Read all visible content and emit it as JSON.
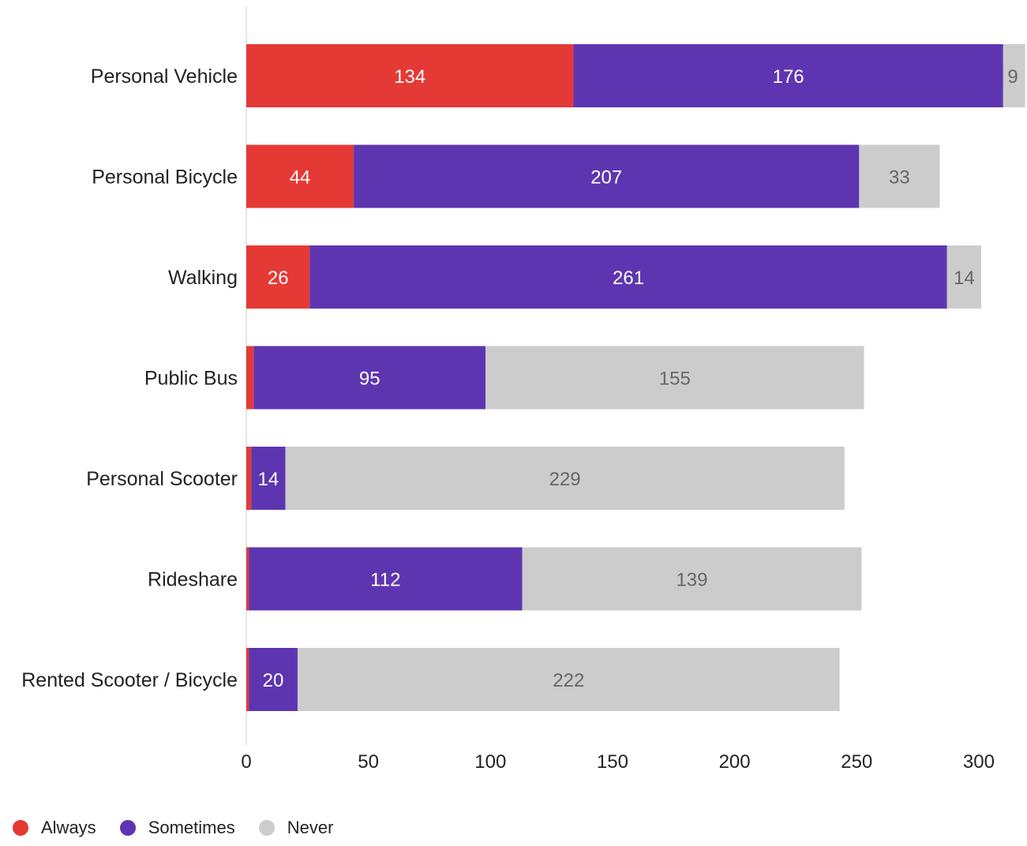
{
  "chart_data": {
    "type": "bar",
    "orientation": "horizontal",
    "stacked": true,
    "categories": [
      "Personal Vehicle",
      "Personal Bicycle",
      "Walking",
      "Public Bus",
      "Personal Scooter",
      "Rideshare",
      "Rented Scooter / Bicycle"
    ],
    "series": [
      {
        "name": "Always",
        "color": "#e53935",
        "values": [
          134,
          44,
          26,
          3,
          2,
          1,
          1
        ],
        "labels": [
          "134",
          "44",
          "26",
          "",
          "",
          "",
          ""
        ]
      },
      {
        "name": "Sometimes",
        "color": "#5e35b1",
        "values": [
          176,
          207,
          261,
          95,
          14,
          112,
          20
        ],
        "labels": [
          "176",
          "207",
          "261",
          "95",
          "14",
          "112",
          "20"
        ]
      },
      {
        "name": "Never",
        "color": "#cccccc",
        "values": [
          9,
          33,
          14,
          155,
          229,
          139,
          222
        ],
        "labels": [
          "9",
          "33",
          "14",
          "155",
          "229",
          "139",
          "222"
        ]
      }
    ],
    "xlim": [
      0,
      320
    ],
    "xticks": [
      0,
      50,
      100,
      150,
      200,
      250,
      300
    ],
    "grid": false,
    "legend_position": "bottom-left"
  },
  "legend": {
    "always": "Always",
    "sometimes": "Sometimes",
    "never": "Never"
  },
  "colors": {
    "always": "#e53935",
    "sometimes": "#5e35b1",
    "never": "#cccccc"
  }
}
